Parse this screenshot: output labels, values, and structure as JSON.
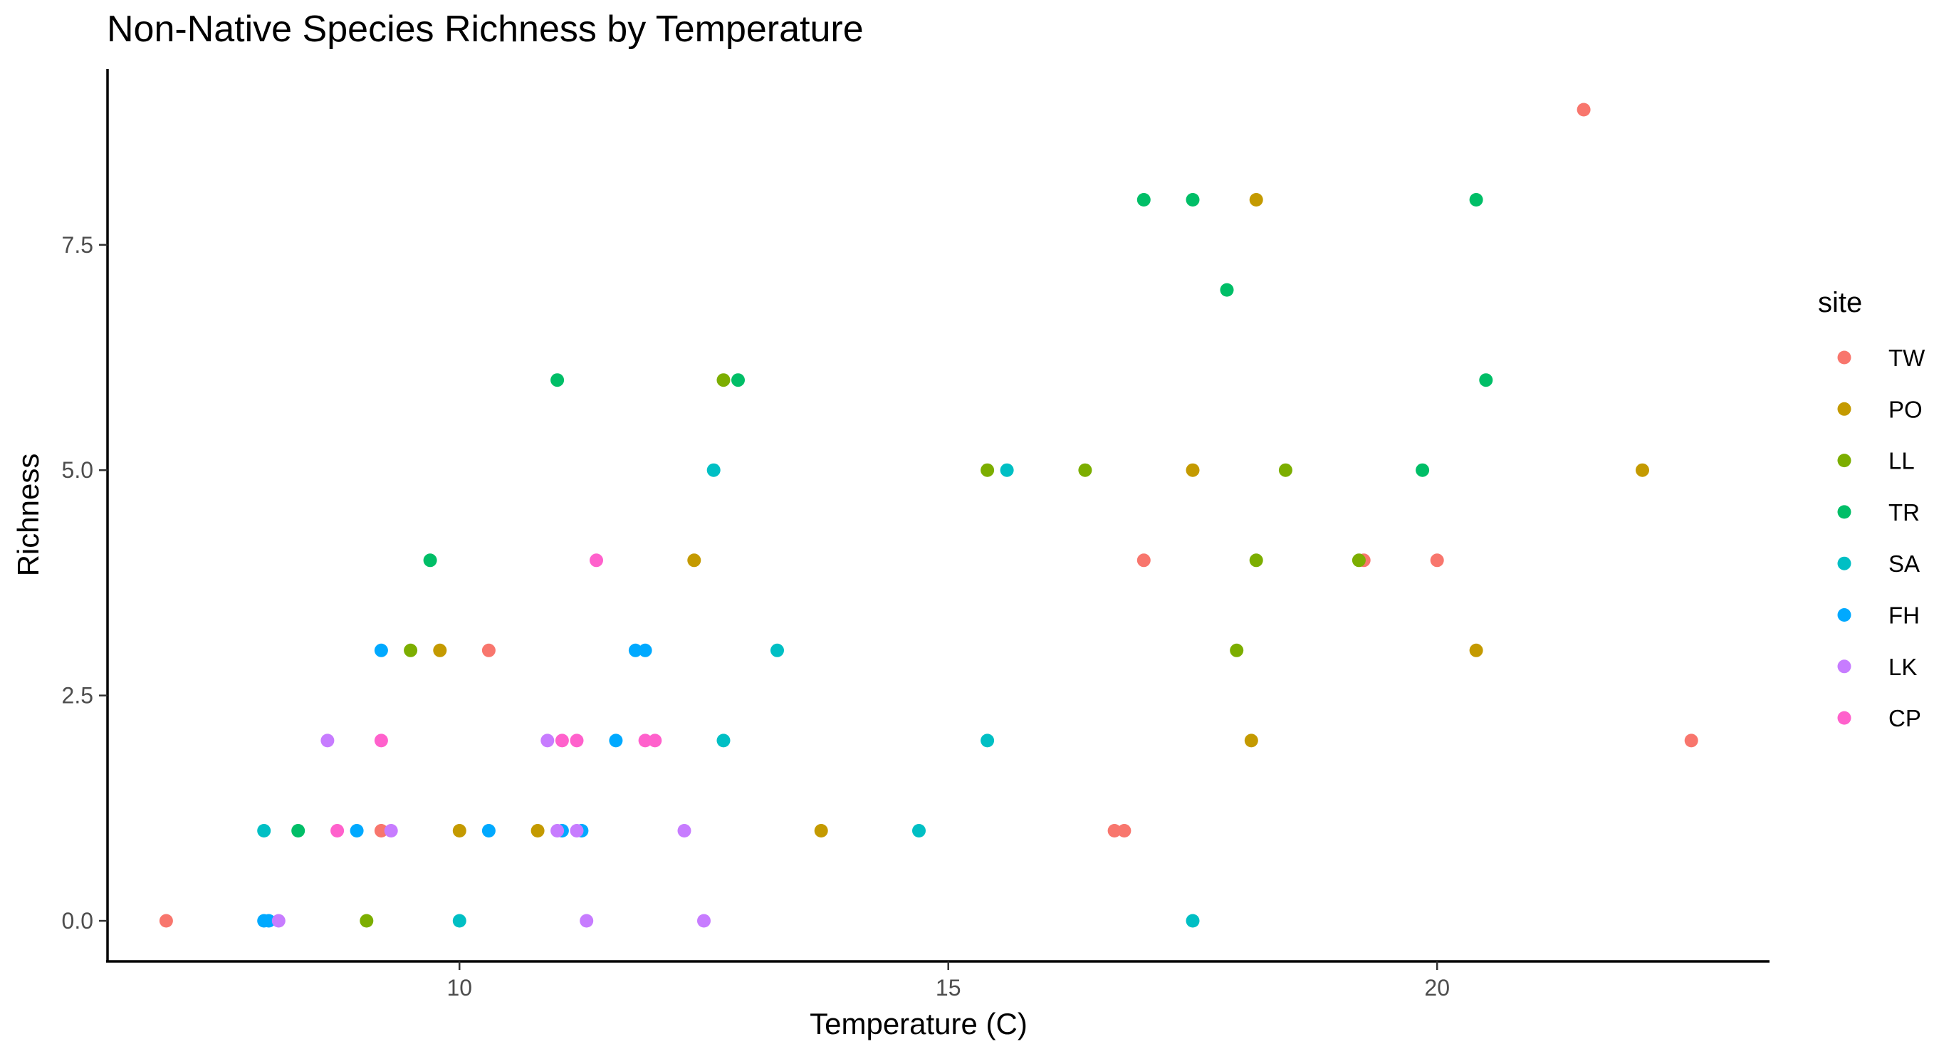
{
  "chart_data": {
    "type": "scatter",
    "title": "Non-Native Species Richness by Temperature",
    "xlabel": "Temperature (C)",
    "ylabel": "Richness",
    "xlim": [
      6.4,
      23.4
    ],
    "ylim": [
      -0.45,
      9.45
    ],
    "x_ticks": [
      {
        "value": 10,
        "label": "10"
      },
      {
        "value": 15,
        "label": "15"
      },
      {
        "value": 20,
        "label": "20"
      }
    ],
    "y_ticks": [
      {
        "value": 0,
        "label": "0.0"
      },
      {
        "value": 2.5,
        "label": "2.5"
      },
      {
        "value": 5,
        "label": "5.0"
      },
      {
        "value": 7.5,
        "label": "7.5"
      }
    ],
    "grid": false,
    "legend": {
      "title": "site",
      "position": "right"
    },
    "series": [
      {
        "name": "TW",
        "color": "#F8766D",
        "points": [
          [
            7.0,
            0
          ],
          [
            9.2,
            1
          ],
          [
            10.3,
            3
          ],
          [
            16.7,
            1
          ],
          [
            16.8,
            1
          ],
          [
            17.0,
            4
          ],
          [
            19.25,
            4
          ],
          [
            20.0,
            4
          ],
          [
            21.5,
            9
          ],
          [
            22.6,
            2
          ]
        ]
      },
      {
        "name": "PO",
        "color": "#C49A00",
        "points": [
          [
            9.8,
            3
          ],
          [
            10.0,
            1
          ],
          [
            10.8,
            1
          ],
          [
            12.4,
            4
          ],
          [
            13.7,
            1
          ],
          [
            17.5,
            5
          ],
          [
            18.1,
            2
          ],
          [
            18.15,
            8
          ],
          [
            20.4,
            3
          ],
          [
            22.1,
            5
          ]
        ]
      },
      {
        "name": "LL",
        "color": "#7CAE00",
        "points": [
          [
            9.05,
            0
          ],
          [
            9.5,
            3
          ],
          [
            12.7,
            6
          ],
          [
            15.4,
            5
          ],
          [
            16.4,
            5
          ],
          [
            17.95,
            3
          ],
          [
            18.15,
            4
          ],
          [
            18.45,
            5
          ],
          [
            19.2,
            4
          ]
        ]
      },
      {
        "name": "TR",
        "color": "#00BE67",
        "points": [
          [
            8.35,
            1
          ],
          [
            9.7,
            4
          ],
          [
            11.0,
            6
          ],
          [
            12.85,
            6
          ],
          [
            17.0,
            8
          ],
          [
            17.5,
            8
          ],
          [
            17.85,
            7
          ],
          [
            19.85,
            5
          ],
          [
            20.4,
            8
          ],
          [
            20.5,
            6
          ]
        ]
      },
      {
        "name": "SA",
        "color": "#00BFC4",
        "points": [
          [
            8.0,
            1
          ],
          [
            10.0,
            0
          ],
          [
            12.6,
            5
          ],
          [
            12.7,
            2
          ],
          [
            13.25,
            3
          ],
          [
            14.7,
            1
          ],
          [
            15.4,
            2
          ],
          [
            15.6,
            5
          ],
          [
            17.5,
            0
          ]
        ]
      },
      {
        "name": "FH",
        "color": "#00A9FF",
        "points": [
          [
            8.0,
            0
          ],
          [
            8.05,
            0
          ],
          [
            8.95,
            1
          ],
          [
            9.2,
            3
          ],
          [
            10.3,
            1
          ],
          [
            11.05,
            1
          ],
          [
            11.25,
            1
          ],
          [
            11.6,
            2
          ],
          [
            11.8,
            3
          ],
          [
            11.9,
            3
          ]
        ]
      },
      {
        "name": "LK",
        "color": "#C77CFF",
        "points": [
          [
            8.15,
            0
          ],
          [
            8.65,
            2
          ],
          [
            9.3,
            1
          ],
          [
            10.9,
            2
          ],
          [
            11.0,
            1
          ],
          [
            11.2,
            1
          ],
          [
            11.3,
            0
          ],
          [
            12.3,
            1
          ],
          [
            12.5,
            0
          ]
        ]
      },
      {
        "name": "CP",
        "color": "#FF61CC",
        "points": [
          [
            8.75,
            1
          ],
          [
            9.2,
            2
          ],
          [
            11.05,
            2
          ],
          [
            11.2,
            2
          ],
          [
            11.4,
            4
          ],
          [
            11.9,
            2
          ],
          [
            12.0,
            2
          ]
        ]
      }
    ]
  }
}
